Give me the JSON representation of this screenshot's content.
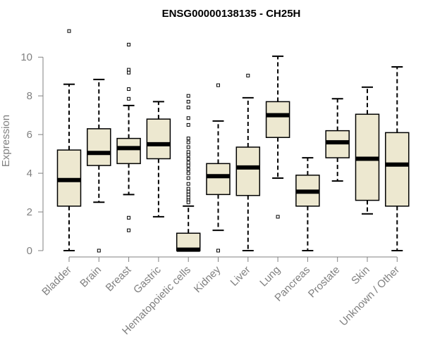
{
  "chart_data": {
    "type": "boxplot",
    "title": "ENSG00000138135 - CH25H",
    "xlabel": "",
    "ylabel": "Expression",
    "ylim": [
      0,
      11.5
    ],
    "yticks": [
      0,
      2,
      4,
      6,
      8,
      10
    ],
    "categories": [
      "Bladder",
      "Brain",
      "Breast",
      "Gastric",
      "Hematopoietic cells",
      "Kidney",
      "Liver",
      "Lung",
      "Pancreas",
      "Prostate",
      "Skin",
      "Unknown / Other"
    ],
    "boxes": [
      {
        "whisker_low": 0.0,
        "q1": 2.3,
        "median": 3.65,
        "q3": 5.2,
        "whisker_high": 8.6,
        "outliers": [
          11.35
        ]
      },
      {
        "whisker_low": 2.5,
        "q1": 4.4,
        "median": 5.05,
        "q3": 6.3,
        "whisker_high": 8.85,
        "outliers": [
          0.0
        ]
      },
      {
        "whisker_low": 2.9,
        "q1": 4.5,
        "median": 5.3,
        "q3": 5.8,
        "whisker_high": 7.5,
        "outliers": [
          10.65,
          9.35,
          9.2,
          8.35,
          7.85,
          1.7,
          1.05
        ]
      },
      {
        "whisker_low": 1.75,
        "q1": 4.75,
        "median": 5.5,
        "q3": 6.8,
        "whisker_high": 7.7,
        "outliers": []
      },
      {
        "whisker_low": 0.0,
        "q1": 0.0,
        "median": 0.05,
        "q3": 0.9,
        "whisker_high": 2.3,
        "outliers": [
          8.0,
          7.7,
          7.4,
          6.85,
          6.5,
          5.8,
          5.6,
          5.35,
          5.1,
          4.95,
          4.75,
          4.55,
          4.4,
          4.2,
          4.0,
          3.75,
          3.45,
          3.2,
          3.05,
          2.9,
          2.75,
          2.6,
          2.5
        ]
      },
      {
        "whisker_low": 1.05,
        "q1": 2.9,
        "median": 3.85,
        "q3": 4.5,
        "whisker_high": 6.7,
        "outliers": [
          8.55,
          0.0
        ]
      },
      {
        "whisker_low": 0.0,
        "q1": 2.85,
        "median": 4.3,
        "q3": 5.35,
        "whisker_high": 7.9,
        "outliers": [
          9.05
        ]
      },
      {
        "whisker_low": 3.75,
        "q1": 5.85,
        "median": 7.0,
        "q3": 7.7,
        "whisker_high": 10.05,
        "outliers": [
          1.75
        ]
      },
      {
        "whisker_low": 0.0,
        "q1": 2.3,
        "median": 3.05,
        "q3": 3.9,
        "whisker_high": 4.8,
        "outliers": []
      },
      {
        "whisker_low": 3.6,
        "q1": 4.8,
        "median": 5.6,
        "q3": 6.2,
        "whisker_high": 7.85,
        "outliers": []
      },
      {
        "whisker_low": 1.9,
        "q1": 2.6,
        "median": 4.75,
        "q3": 7.05,
        "whisker_high": 8.45,
        "outliers": []
      },
      {
        "whisker_low": 0.0,
        "q1": 2.3,
        "median": 4.45,
        "q3": 6.1,
        "whisker_high": 9.5,
        "outliers": []
      }
    ],
    "colors": {
      "box_fill": "#ede8d0",
      "box_stroke": "#000000",
      "median": "#000000",
      "axis": "#808080",
      "title": "#000000"
    }
  }
}
